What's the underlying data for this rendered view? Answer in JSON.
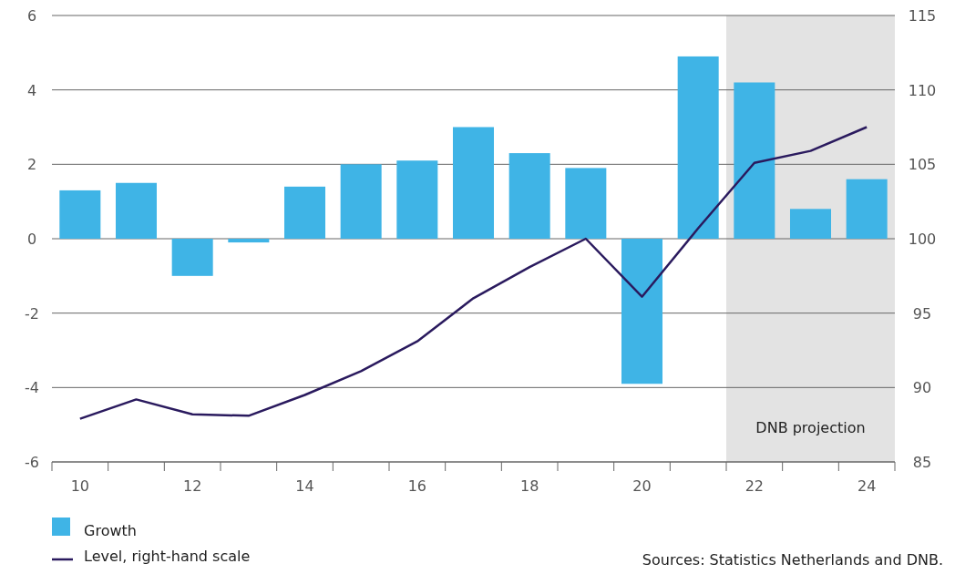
{
  "chart_data": {
    "type": "bar",
    "categories": [
      "10",
      null,
      "12",
      null,
      "14",
      null,
      "16",
      null,
      "18",
      null,
      "20",
      null,
      "22",
      null,
      "24"
    ],
    "series": [
      {
        "name": "Growth",
        "color": "#3fb4e6",
        "values": [
          1.3,
          1.5,
          -1.0,
          -0.1,
          1.4,
          2.0,
          2.1,
          3.0,
          2.3,
          1.9,
          -3.9,
          4.9,
          4.2,
          0.8,
          1.6
        ]
      },
      {
        "name": "Level, right-hand scale",
        "type": "line",
        "axis": "y2",
        "color": "#2a1a5e",
        "values": [
          87.9,
          89.2,
          88.2,
          88.1,
          89.5,
          91.1,
          93.1,
          96.0,
          98.1,
          100.0,
          96.1,
          100.7,
          105.1,
          105.9,
          107.5
        ]
      }
    ],
    "ylim": [
      -6,
      6
    ],
    "yticks": [
      -6,
      -4,
      -2,
      0,
      2,
      4,
      6
    ],
    "y2lim": [
      85,
      115
    ],
    "y2ticks": [
      85,
      90,
      95,
      100,
      105,
      110,
      115
    ],
    "bands": [
      {
        "axis": "x",
        "from": "22",
        "to": "24",
        "label": "DNB projection",
        "color": "#e3e3e3"
      }
    ],
    "grid": "y",
    "legend": "bottom",
    "marker": "none",
    "line_style": "solid",
    "annotations": [
      "Sources: Statistics Netherlands and DNB."
    ]
  }
}
